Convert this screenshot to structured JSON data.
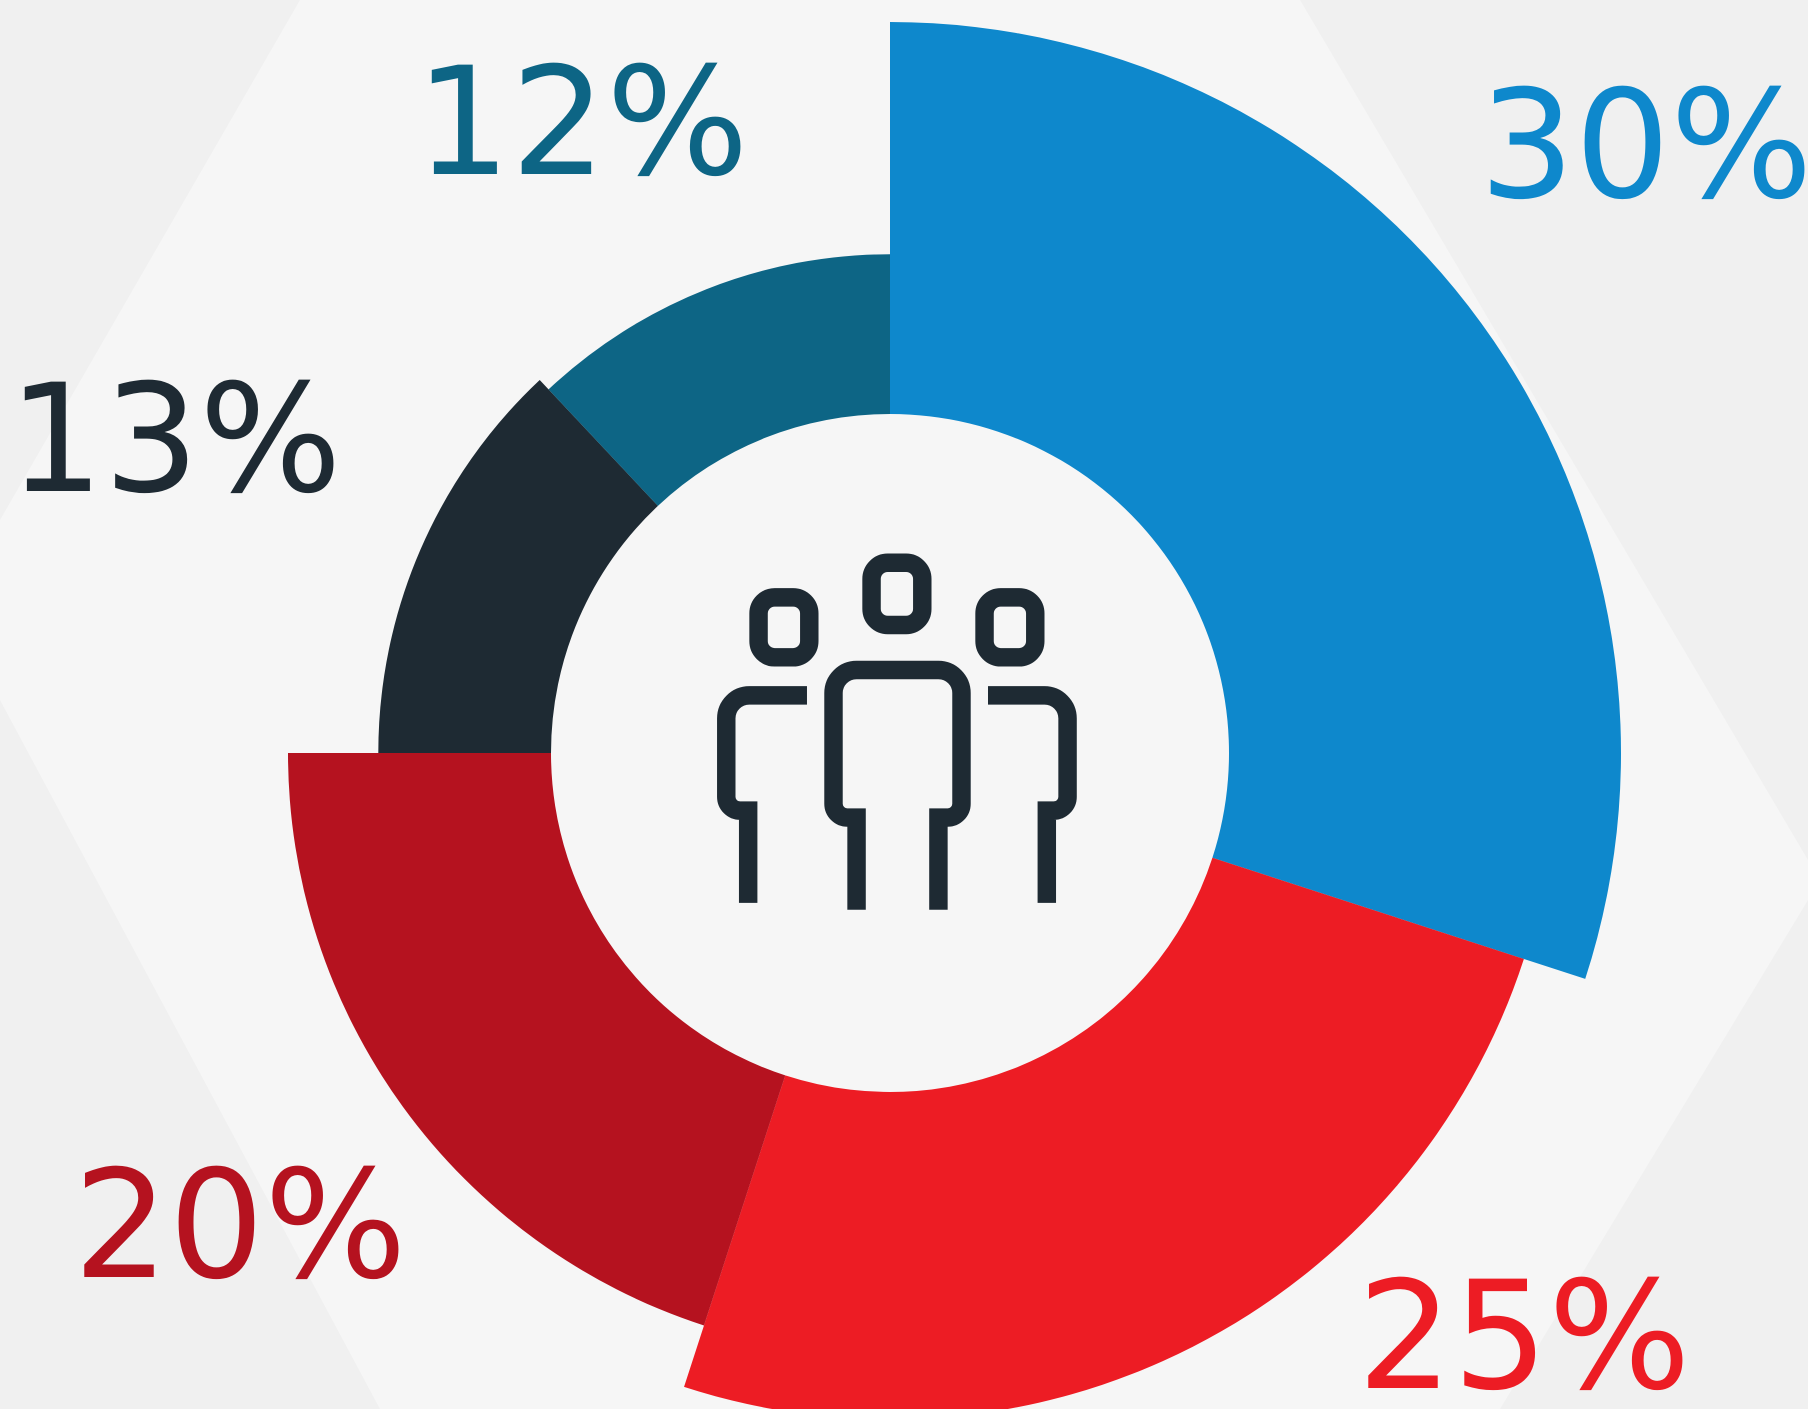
{
  "chart_data": {
    "type": "pie",
    "values": [
      30,
      25,
      20,
      13,
      12
    ],
    "value_labels": [
      "30%",
      "25%",
      "20%",
      "13%",
      "12%"
    ],
    "colors": [
      "#0e88cc",
      "#ed1c24",
      "#b5121f",
      "#1e2a33",
      "#0d6585"
    ]
  }
}
